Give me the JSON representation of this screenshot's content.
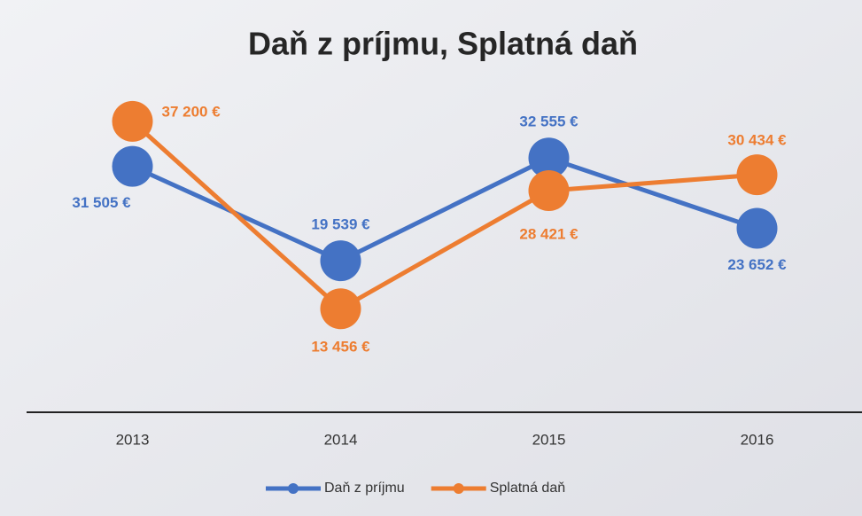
{
  "chart_data": {
    "type": "line",
    "title": "Daň z príjmu, Splatná daň",
    "categories": [
      "2013",
      "2014",
      "2015",
      "2016"
    ],
    "ylim": [
      0,
      40000
    ],
    "legend": "bottom",
    "series": [
      {
        "name": "Daň z príjmu",
        "color": "#4472c4",
        "values": [
          31505,
          19539,
          32555,
          23652
        ],
        "value_labels": [
          "31 505 €",
          "19 539 €",
          "32 555 €",
          "23 652 €"
        ]
      },
      {
        "name": "Splatná daň",
        "color": "#ed7d31",
        "values": [
          37200,
          13456,
          28421,
          30434
        ],
        "value_labels": [
          "37 200 €",
          "13 456 €",
          "28 421 €",
          "30 434 €"
        ]
      }
    ]
  }
}
